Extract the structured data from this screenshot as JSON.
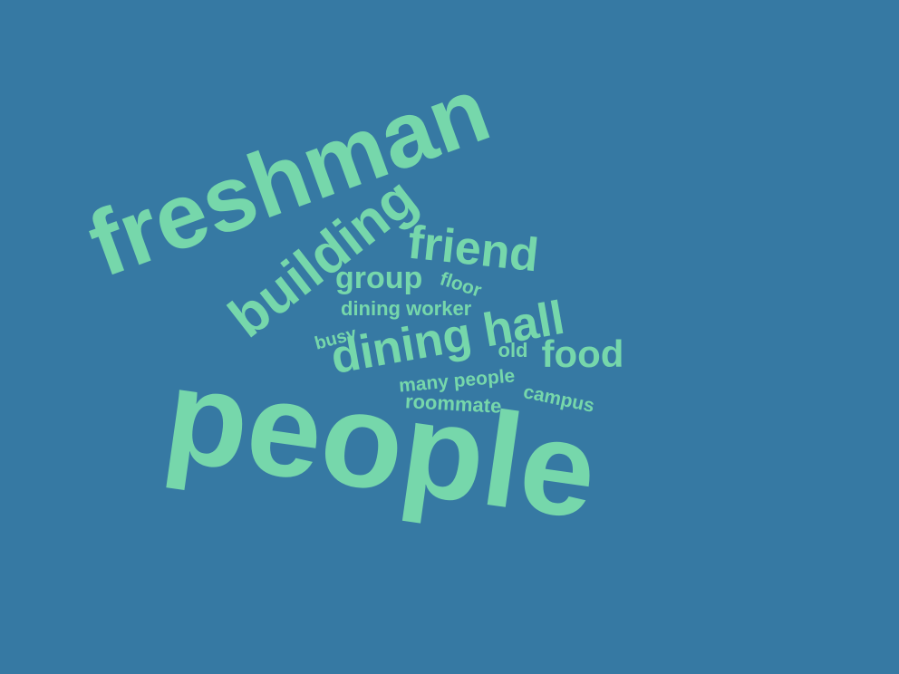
{
  "colors": {
    "background": "#3679A3",
    "word": "#76D7AB"
  },
  "words": [
    {
      "text": "freshman",
      "rotate": -20
    },
    {
      "text": "people",
      "rotate": 8
    },
    {
      "text": "building",
      "rotate": -38
    },
    {
      "text": "friend",
      "rotate": 6
    },
    {
      "text": "dining hall",
      "rotate": -10
    },
    {
      "text": "group",
      "rotate": 0
    },
    {
      "text": "floor",
      "rotate": 18
    },
    {
      "text": "dining worker",
      "rotate": 0
    },
    {
      "text": "busy",
      "rotate": -15
    },
    {
      "text": "old",
      "rotate": 0
    },
    {
      "text": "food",
      "rotate": 0
    },
    {
      "text": "many people",
      "rotate": -5
    },
    {
      "text": "roommate",
      "rotate": 3
    },
    {
      "text": "campus",
      "rotate": 12
    }
  ]
}
